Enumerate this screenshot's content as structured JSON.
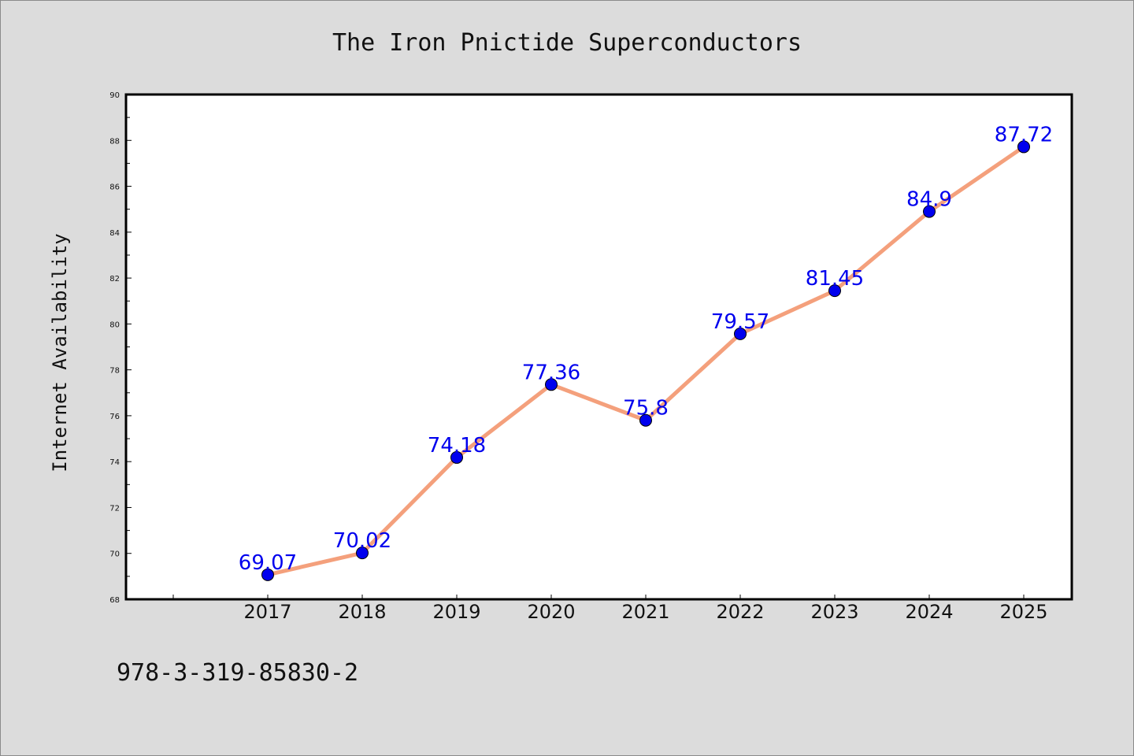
{
  "chart_data": {
    "type": "line",
    "title": "The Iron Pnictide Superconductors",
    "xlabel": "",
    "ylabel": "Internet Availability",
    "categories": [
      "2017",
      "2018",
      "2019",
      "2020",
      "2021",
      "2022",
      "2023",
      "2024",
      "2025"
    ],
    "values": [
      69.07,
      70.02,
      74.18,
      77.36,
      75.8,
      79.57,
      81.45,
      84.9,
      87.72
    ],
    "data_labels": [
      "69.07",
      "70.02",
      "74.18",
      "77.36",
      "75.8",
      "79.57",
      "81.45",
      "84.9",
      "87.72"
    ],
    "ylim": [
      68,
      90
    ],
    "yticks": [
      68,
      70,
      72,
      74,
      76,
      78,
      80,
      82,
      84,
      86,
      88,
      90
    ],
    "grid": false,
    "legend": "none",
    "colors": {
      "line": "#f4a07c",
      "marker": "#0000ee",
      "marker_edge": "#000000",
      "data_label": "#0000ee",
      "background": "#dcdcdc",
      "plot_area": "#ffffff"
    }
  },
  "footer": {
    "caption": "978-3-319-85830-2"
  }
}
